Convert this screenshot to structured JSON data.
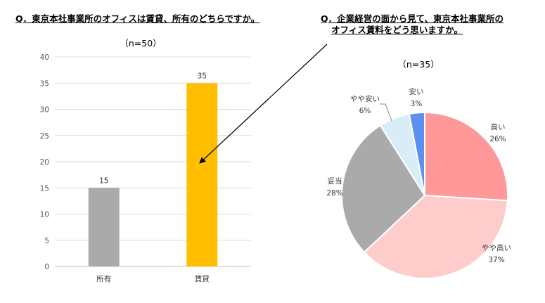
{
  "left_question": "Q．東京本社事業所のオフィスは賃貸、所有のどちらですか。",
  "right_question": [
    "Q．企業経営の面から見て、東京本社事業所の",
    "オフィス賃料をどう思いますか。"
  ],
  "chart_data": [
    {
      "type": "bar",
      "title": "（n=50）",
      "categories": [
        "所有",
        "賃貸"
      ],
      "values": [
        15,
        35
      ],
      "data_labels": [
        "15",
        "35"
      ],
      "colors": [
        "#aaaaaa",
        "#ffbf00"
      ],
      "ylim": [
        0,
        40
      ],
      "yticks": [
        0,
        5,
        10,
        15,
        20,
        25,
        30,
        35,
        40
      ],
      "grid": true
    },
    {
      "type": "pie",
      "title": "（n=35）",
      "slices": [
        {
          "label": "高い",
          "value": 26,
          "pct": "26%",
          "color": "#ff9999"
        },
        {
          "label": "やや高い",
          "value": 37,
          "pct": "37%",
          "color": "#ffcccc"
        },
        {
          "label": "妥当",
          "value": 28,
          "pct": "28%",
          "color": "#aaaaaa"
        },
        {
          "label": "やや安い",
          "value": 6,
          "pct": "6%",
          "color": "#d9edf7"
        },
        {
          "label": "安い",
          "value": 3,
          "pct": "3%",
          "color": "#5b8ff0"
        }
      ]
    }
  ]
}
